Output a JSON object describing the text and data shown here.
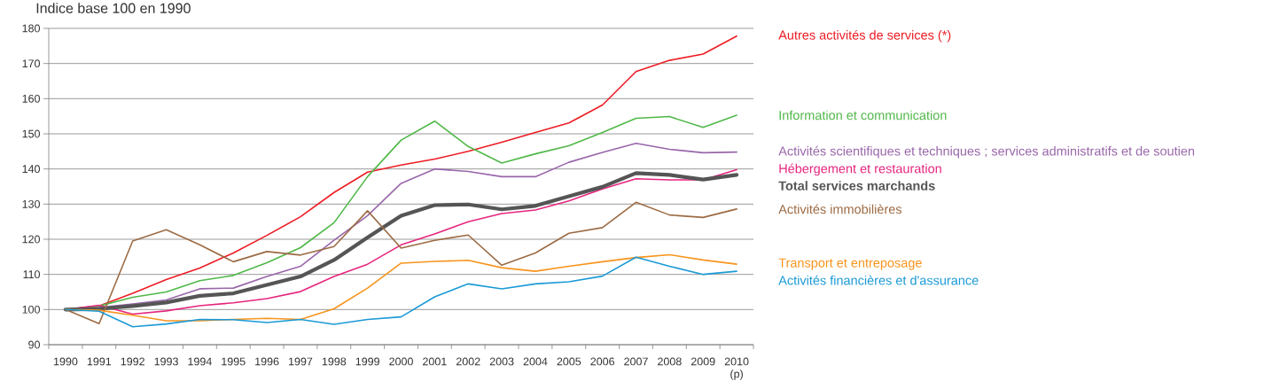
{
  "chart_data": {
    "type": "line",
    "title": "Indice base 100 en 1990",
    "categories": [
      "1990",
      "1991",
      "1992",
      "1993",
      "1994",
      "1995",
      "1996",
      "1997",
      "1998",
      "1999",
      "2000",
      "2001",
      "2002",
      "2003",
      "2004",
      "2005",
      "2006",
      "2007",
      "2008",
      "2009",
      "2010 (p)"
    ],
    "ylim": [
      90,
      180
    ],
    "yticks": [
      90,
      100,
      110,
      120,
      130,
      140,
      150,
      160,
      170,
      180
    ],
    "grid": "y",
    "series": [
      {
        "name": "Autres activités de services (*)",
        "color": "#ed1c24",
        "values": [
          100,
          101.0,
          104.6,
          108.5,
          111.8,
          116.1,
          121.1,
          126.4,
          133.3,
          139.1,
          141.1,
          142.8,
          145.0,
          147.6,
          150.4,
          153.1,
          158.2,
          167.7,
          170.9,
          172.7,
          177.8
        ]
      },
      {
        "name": "Information et communication",
        "color": "#50b848",
        "values": [
          100,
          101.0,
          103.5,
          105.0,
          108.2,
          109.7,
          113.3,
          117.6,
          124.7,
          137.8,
          148.2,
          153.6,
          146.4,
          141.7,
          144.3,
          146.6,
          150.4,
          154.4,
          154.9,
          151.8,
          155.3
        ]
      },
      {
        "name": "Activités scientifiques et techniques ; services administratifs et de soutien",
        "color": "#9966aa",
        "values": [
          100,
          100.6,
          101.6,
          102.7,
          105.9,
          106.1,
          109.4,
          112.3,
          119.7,
          126.7,
          135.9,
          140.0,
          139.3,
          137.8,
          137.8,
          141.9,
          144.7,
          147.3,
          145.6,
          144.6,
          144.8
        ]
      },
      {
        "name": "Hébergement et restauration",
        "color": "#e6267e",
        "values": [
          100,
          101.2,
          98.7,
          99.6,
          101.1,
          101.9,
          103.1,
          105.1,
          109.4,
          112.9,
          118.4,
          121.5,
          125.0,
          127.3,
          128.3,
          130.9,
          134.3,
          137.2,
          136.9,
          136.9,
          139.8
        ]
      },
      {
        "name": "**Total services marchands**",
        "color": "#555555",
        "values": [
          100,
          100.2,
          101.0,
          102.0,
          103.9,
          104.6,
          107.0,
          109.4,
          114.1,
          120.5,
          126.7,
          129.7,
          129.9,
          128.5,
          129.5,
          132.2,
          134.9,
          138.8,
          138.3,
          137.0,
          138.3
        ]
      },
      {
        "name": "Activités immobilières",
        "color": "#9c6b44",
        "values": [
          100,
          96.0,
          119.5,
          122.7,
          118.4,
          113.6,
          116.5,
          115.5,
          117.9,
          128.1,
          117.5,
          119.7,
          121.2,
          112.6,
          116.1,
          121.7,
          123.3,
          130.5,
          126.9,
          126.2,
          128.6
        ]
      },
      {
        "name": "Transport et entreposage",
        "color": "#f7941d",
        "values": [
          100,
          99.8,
          98.4,
          96.8,
          96.8,
          97.2,
          97.5,
          97.2,
          100.2,
          106.1,
          113.2,
          113.7,
          114.0,
          111.9,
          110.9,
          112.3,
          113.6,
          114.8,
          115.6,
          114.1,
          112.9
        ]
      },
      {
        "name": "Activités financières et d'assurance",
        "color": "#1b9ad6",
        "values": [
          100,
          99.5,
          95.1,
          95.9,
          97.2,
          97.1,
          96.3,
          97.2,
          95.8,
          97.2,
          97.9,
          103.6,
          107.3,
          105.9,
          107.3,
          107.9,
          109.5,
          114.9,
          112.3,
          110.0,
          110.9
        ]
      }
    ]
  }
}
